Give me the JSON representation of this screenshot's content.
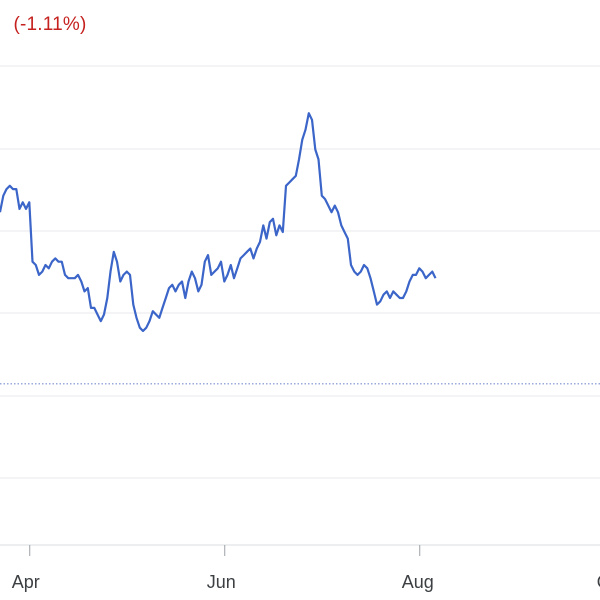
{
  "header": {
    "change_text": "(-1.11%)",
    "change_color": "#c5221f"
  },
  "chart_data": {
    "type": "line",
    "title": "",
    "xlabel": "",
    "ylabel": "",
    "x_ticks": [
      "Apr",
      "Jun",
      "Aug",
      "O"
    ],
    "x_tick_index": [
      3,
      63,
      123,
      183
    ],
    "grid": "horizontal",
    "line_color": "#3b65c8",
    "ylim": [
      0,
      100
    ],
    "reference_line": {
      "value": 14,
      "style": "dotted",
      "color": "#7b8fd0"
    },
    "series": [
      {
        "values": [
          66,
          71,
          73,
          74,
          73,
          73,
          67,
          69,
          67,
          69,
          51,
          50,
          47,
          48,
          50,
          49,
          51,
          52,
          51,
          51,
          47,
          46,
          46,
          46,
          47,
          45,
          42,
          43,
          37,
          37,
          35,
          33,
          35,
          40,
          48,
          54,
          51,
          45,
          47,
          48,
          47,
          38,
          34,
          31,
          30,
          31,
          33,
          36,
          35,
          34,
          37,
          40,
          43,
          44,
          42,
          44,
          45,
          40,
          45,
          48,
          46,
          42,
          44,
          51,
          53,
          47,
          48,
          49,
          51,
          45,
          47,
          50,
          46,
          49,
          52,
          53,
          54,
          55,
          52,
          55,
          57,
          62,
          58,
          63,
          64,
          59,
          62,
          60,
          74,
          75,
          76,
          77,
          82,
          88,
          91,
          96,
          94,
          85,
          82,
          71,
          70,
          68,
          66,
          68,
          66,
          62,
          60,
          58,
          50,
          48,
          47,
          48,
          50,
          49,
          46,
          42,
          38,
          39,
          41,
          42,
          40,
          42,
          41,
          40,
          40,
          42,
          45,
          47,
          47,
          49,
          48,
          46,
          47,
          48,
          46
        ]
      }
    ]
  }
}
